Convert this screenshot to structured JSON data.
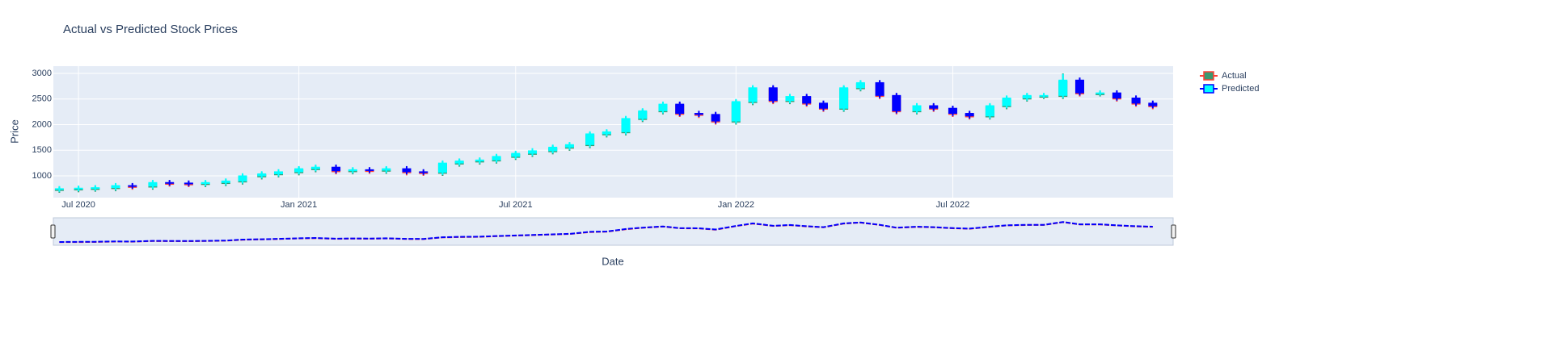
{
  "chart_data": {
    "type": "candlestick",
    "title": "Actual vs Predicted Stock Prices",
    "x_label": "Date",
    "y_label": "Price",
    "x": [
      "2020-06-15",
      "2020-07-01",
      "2020-07-15",
      "2020-08-01",
      "2020-08-15",
      "2020-09-01",
      "2020-09-15",
      "2020-10-01",
      "2020-10-15",
      "2020-11-01",
      "2020-11-15",
      "2020-12-01",
      "2020-12-15",
      "2021-01-01",
      "2021-01-15",
      "2021-02-01",
      "2021-02-15",
      "2021-03-01",
      "2021-03-15",
      "2021-04-01",
      "2021-04-15",
      "2021-05-01",
      "2021-05-15",
      "2021-06-01",
      "2021-06-15",
      "2021-07-01",
      "2021-07-15",
      "2021-08-01",
      "2021-08-15",
      "2021-09-01",
      "2021-09-15",
      "2021-10-01",
      "2021-10-15",
      "2021-11-01",
      "2021-11-15",
      "2021-12-01",
      "2021-12-15",
      "2022-01-01",
      "2022-01-15",
      "2022-02-01",
      "2022-02-15",
      "2022-03-01",
      "2022-03-15",
      "2022-04-01",
      "2022-04-15",
      "2022-05-01",
      "2022-05-15",
      "2022-06-01",
      "2022-06-15",
      "2022-07-01",
      "2022-07-15",
      "2022-08-01",
      "2022-08-15",
      "2022-09-01",
      "2022-09-15",
      "2022-10-01",
      "2022-10-15",
      "2022-11-01",
      "2022-11-15",
      "2022-12-01",
      "2022-12-15"
    ],
    "xlim": [
      "2020-06-10",
      "2023-01-01"
    ],
    "xticks": [
      {
        "value": "2020-07-01",
        "label": "Jul 2020"
      },
      {
        "value": "2021-01-01",
        "label": "Jan 2021"
      },
      {
        "value": "2021-07-01",
        "label": "Jul 2021"
      },
      {
        "value": "2022-01-01",
        "label": "Jan 2022"
      },
      {
        "value": "2022-07-01",
        "label": "Jul 2022"
      }
    ],
    "ylim": [
      575,
      3142
    ],
    "yticks": [
      1000,
      1500,
      2000,
      2500,
      3000
    ],
    "grid": true,
    "rangeslider": true,
    "series": [
      {
        "name": "Actual",
        "increasing_color": "#3d9970",
        "decreasing_color": "#ff4136",
        "open": [
          720,
          730,
          740,
          750,
          790,
          780,
          850,
          840,
          830,
          850,
          880,
          980,
          1020,
          1060,
          1120,
          1150,
          1080,
          1100,
          1090,
          1120,
          1060,
          1050,
          1230,
          1270,
          1290,
          1360,
          1420,
          1470,
          1540,
          1590,
          1800,
          1840,
          2100,
          2250,
          2380,
          2200,
          2180,
          2050,
          2430,
          2700,
          2450,
          2530,
          2400,
          2300,
          2700,
          2800,
          2550,
          2250,
          2350,
          2300,
          2200,
          2150,
          2350,
          2500,
          2550,
          2550,
          2850,
          2600,
          2600,
          2500,
          2400
        ],
        "high": [
          780,
          790,
          800,
          840,
          840,
          900,
          900,
          890,
          900,
          930,
          1030,
          1070,
          1110,
          1170,
          1200,
          1200,
          1150,
          1150,
          1170,
          1170,
          1110,
          1280,
          1320,
          1340,
          1410,
          1470,
          1520,
          1590,
          1640,
          1850,
          1890,
          2150,
          2300,
          2430,
          2430,
          2250,
          2230,
          2480,
          2750,
          2750,
          2580,
          2580,
          2450,
          2750,
          2850,
          2850,
          2600,
          2400,
          2400,
          2350,
          2250,
          2400,
          2550,
          2600,
          2600,
          3000,
          2900,
          2650,
          2650,
          2550,
          2450
        ],
        "low": [
          670,
          680,
          690,
          700,
          730,
          730,
          790,
          780,
          780,
          800,
          830,
          930,
          970,
          1010,
          1070,
          1030,
          1030,
          1040,
          1040,
          1010,
          1000,
          1000,
          1180,
          1220,
          1240,
          1310,
          1370,
          1420,
          1490,
          1540,
          1750,
          1790,
          2050,
          2200,
          2150,
          2130,
          2000,
          2000,
          2380,
          2400,
          2400,
          2350,
          2250,
          2250,
          2650,
          2500,
          2200,
          2200,
          2250,
          2150,
          2100,
          2100,
          2300,
          2450,
          2500,
          2500,
          2550,
          2550,
          2450,
          2350,
          2300
        ],
        "close": [
          730,
          740,
          750,
          790,
          780,
          850,
          840,
          830,
          850,
          880,
          980,
          1020,
          1060,
          1120,
          1150,
          1080,
          1100,
          1090,
          1120,
          1060,
          1050,
          1230,
          1270,
          1290,
          1360,
          1420,
          1470,
          1540,
          1590,
          1800,
          1840,
          2100,
          2250,
          2380,
          2200,
          2180,
          2050,
          2430,
          2700,
          2450,
          2530,
          2400,
          2300,
          2700,
          2800,
          2550,
          2250,
          2350,
          2300,
          2200,
          2150,
          2350,
          2500,
          2550,
          2550,
          2850,
          2600,
          2600,
          2500,
          2400,
          2350
        ]
      },
      {
        "name": "Predicted",
        "increasing_color": "#00ffff",
        "decreasing_color": "#0000ff",
        "open": [
          740,
          750,
          760,
          770,
          810,
          800,
          870,
          860,
          850,
          870,
          900,
          1000,
          1040,
          1080,
          1140,
          1170,
          1100,
          1120,
          1110,
          1140,
          1080,
          1070,
          1250,
          1290,
          1310,
          1380,
          1440,
          1490,
          1560,
          1610,
          1820,
          1860,
          2120,
          2270,
          2400,
          2220,
          2200,
          2070,
          2450,
          2720,
          2470,
          2550,
          2420,
          2320,
          2720,
          2820,
          2570,
          2270,
          2370,
          2320,
          2220,
          2170,
          2370,
          2520,
          2570,
          2570,
          2870,
          2620,
          2620,
          2520,
          2420
        ],
        "high": [
          800,
          810,
          820,
          860,
          860,
          920,
          920,
          910,
          920,
          950,
          1050,
          1090,
          1130,
          1190,
          1220,
          1220,
          1170,
          1170,
          1190,
          1190,
          1130,
          1300,
          1340,
          1360,
          1430,
          1490,
          1540,
          1610,
          1660,
          1870,
          1910,
          2170,
          2320,
          2450,
          2450,
          2270,
          2250,
          2500,
          2770,
          2770,
          2600,
          2600,
          2470,
          2770,
          2870,
          2870,
          2620,
          2420,
          2420,
          2370,
          2270,
          2420,
          2570,
          2620,
          2620,
          2990,
          2920,
          2670,
          2670,
          2570,
          2470
        ],
        "low": [
          690,
          700,
          710,
          720,
          750,
          750,
          810,
          800,
          800,
          820,
          850,
          950,
          990,
          1030,
          1090,
          1050,
          1050,
          1060,
          1060,
          1030,
          1020,
          1020,
          1200,
          1240,
          1260,
          1330,
          1390,
          1440,
          1510,
          1560,
          1770,
          1810,
          2070,
          2220,
          2170,
          2150,
          2020,
          2020,
          2400,
          2420,
          2420,
          2370,
          2270,
          2270,
          2670,
          2520,
          2220,
          2220,
          2270,
          2170,
          2120,
          2120,
          2320,
          2470,
          2520,
          2520,
          2570,
          2570,
          2470,
          2370,
          2320
        ],
        "close": [
          750,
          760,
          770,
          810,
          800,
          870,
          860,
          850,
          870,
          900,
          1000,
          1040,
          1080,
          1140,
          1170,
          1100,
          1120,
          1110,
          1140,
          1080,
          1070,
          1250,
          1290,
          1310,
          1380,
          1440,
          1490,
          1560,
          1610,
          1820,
          1860,
          2120,
          2270,
          2400,
          2220,
          2200,
          2070,
          2450,
          2720,
          2470,
          2550,
          2420,
          2320,
          2720,
          2820,
          2570,
          2270,
          2370,
          2320,
          2220,
          2170,
          2370,
          2520,
          2570,
          2570,
          2870,
          2620,
          2620,
          2520,
          2420,
          2370
        ]
      }
    ]
  }
}
